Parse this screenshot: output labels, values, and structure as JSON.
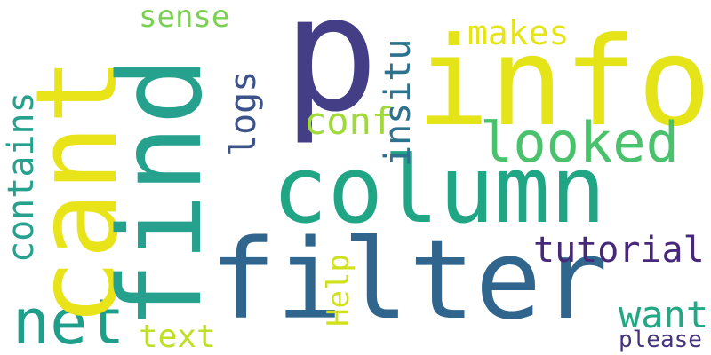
{
  "words": {
    "p": {
      "text": "p",
      "color": "#433e85"
    },
    "info": {
      "text": "info",
      "color": "#e5e419"
    },
    "cant": {
      "text": "cant",
      "color": "#e8e419"
    },
    "find": {
      "text": "find",
      "color": "#25a18e"
    },
    "column": {
      "text": "column",
      "color": "#21a685"
    },
    "filter": {
      "text": "filter",
      "color": "#30668e"
    },
    "looked": {
      "text": "looked",
      "color": "#4ac16d"
    },
    "net": {
      "text": "net",
      "color": "#1f9e89"
    },
    "contains": {
      "text": "contains",
      "color": "#25a18e"
    },
    "sense": {
      "text": "sense",
      "color": "#7ad151"
    },
    "makes": {
      "text": "makes",
      "color": "#e5e419"
    },
    "logs": {
      "text": "logs",
      "color": "#3b528b"
    },
    "insitu": {
      "text": "insitu",
      "color": "#2c728e"
    },
    "conf": {
      "text": "conf",
      "color": "#a0da39"
    },
    "tutorial": {
      "text": "tutorial",
      "color": "#482878"
    },
    "help": {
      "text": "Help",
      "color": "#d0e11c"
    },
    "text": {
      "text": "text",
      "color": "#bddf26"
    },
    "want": {
      "text": "want",
      "color": "#22a884"
    },
    "please": {
      "text": "please",
      "color": "#46337e"
    }
  }
}
